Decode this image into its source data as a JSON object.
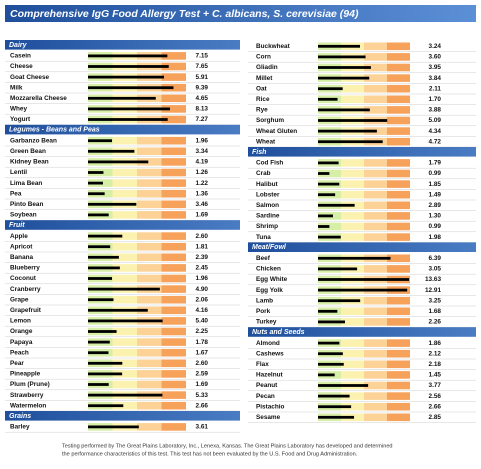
{
  "title": "Comprehensive IgG Food Allergy Test + C. albicans, S. cerevisiae (94)",
  "scale": {
    "breaks": [
      0,
      2,
      3.5,
      5,
      14
    ],
    "colors": [
      "#d6eea6",
      "#fbf2b0",
      "#fcd296",
      "#f7a25b"
    ],
    "bar_color": "#000000"
  },
  "columns": [
    [
      {
        "header": "Dairy",
        "items": [
          {
            "name": "Casein",
            "value": 7.15
          },
          {
            "name": "Cheese",
            "value": 7.65
          },
          {
            "name": "Goat Cheese",
            "value": 5.91
          },
          {
            "name": "Milk",
            "value": 9.39
          },
          {
            "name": "Mozzarella Cheese",
            "value": 4.65
          },
          {
            "name": "Whey",
            "value": 8.13
          },
          {
            "name": "Yogurt",
            "value": 7.27
          }
        ]
      },
      {
        "header": "Legumes - Beans and Peas",
        "items": [
          {
            "name": "Garbanzo Bean",
            "value": 1.96
          },
          {
            "name": "Green Bean",
            "value": 3.34
          },
          {
            "name": "Kidney Bean",
            "value": 4.19
          },
          {
            "name": "Lentil",
            "value": 1.26
          },
          {
            "name": "Lima Bean",
            "value": 1.22
          },
          {
            "name": "Pea",
            "value": 1.36
          },
          {
            "name": "Pinto Bean",
            "value": 3.46
          },
          {
            "name": "Soybean",
            "value": 1.69
          }
        ]
      },
      {
        "header": "Fruit",
        "items": [
          {
            "name": "Apple",
            "value": 2.6,
            "value_label": "2.60"
          },
          {
            "name": "Apricot",
            "value": 1.81
          },
          {
            "name": "Banana",
            "value": 2.39
          },
          {
            "name": "Blueberry",
            "value": 2.45
          },
          {
            "name": "Coconut",
            "value": 1.96
          },
          {
            "name": "Cranberry",
            "value": 4.9,
            "value_label": "4.90"
          },
          {
            "name": "Grape",
            "value": 2.06
          },
          {
            "name": "Grapefruit",
            "value": 4.16
          },
          {
            "name": "Lemon",
            "value": 5.4,
            "value_label": "5.40"
          },
          {
            "name": "Orange",
            "value": 2.25
          },
          {
            "name": "Papaya",
            "value": 1.78
          },
          {
            "name": "Peach",
            "value": 1.67
          },
          {
            "name": "Pear",
            "value": 2.6,
            "value_label": "2.60"
          },
          {
            "name": "Pineapple",
            "value": 2.59
          },
          {
            "name": "Plum (Prune)",
            "value": 1.69
          },
          {
            "name": "Strawberry",
            "value": 5.33
          },
          {
            "name": "Watermelon",
            "value": 2.66
          }
        ]
      },
      {
        "header": "Grains",
        "items": [
          {
            "name": "Barley",
            "value": 3.61
          }
        ]
      }
    ],
    [
      {
        "items": [
          {
            "name": "Buckwheat",
            "value": 3.24
          },
          {
            "name": "Corn",
            "value": 3.6,
            "value_label": "3.60"
          },
          {
            "name": "Gliadin",
            "value": 3.95
          },
          {
            "name": "Millet",
            "value": 3.84
          },
          {
            "name": "Oat",
            "value": 2.11
          },
          {
            "name": "Rice",
            "value": 1.7,
            "value_label": "1.70"
          },
          {
            "name": "Rye",
            "value": 3.88
          },
          {
            "name": "Sorghum",
            "value": 5.09
          },
          {
            "name": "Wheat Gluten",
            "value": 4.34
          },
          {
            "name": "Wheat",
            "value": 4.72
          }
        ]
      },
      {
        "header": "Fish",
        "items": [
          {
            "name": "Cod Fish",
            "value": 1.79
          },
          {
            "name": "Crab",
            "value": 0.99
          },
          {
            "name": "Halibut",
            "value": 1.85
          },
          {
            "name": "Lobster",
            "value": 1.49
          },
          {
            "name": "Salmon",
            "value": 2.89
          },
          {
            "name": "Sardine",
            "value": 1.3,
            "value_label": "1.30"
          },
          {
            "name": "Shrimp",
            "value": 0.99
          },
          {
            "name": "Tuna",
            "value": 1.98
          }
        ]
      },
      {
        "header": "Meat/Fowl",
        "items": [
          {
            "name": "Beef",
            "value": 6.39
          },
          {
            "name": "Chicken",
            "value": 3.05
          },
          {
            "name": "Egg White",
            "value": 13.63
          },
          {
            "name": "Egg Yolk",
            "value": 12.91
          },
          {
            "name": "Lamb",
            "value": 3.25
          },
          {
            "name": "Pork",
            "value": 1.68
          },
          {
            "name": "Turkey",
            "value": 2.26
          }
        ]
      },
      {
        "header": "Nuts and Seeds",
        "items": [
          {
            "name": "Almond",
            "value": 1.86
          },
          {
            "name": "Cashews",
            "value": 2.12
          },
          {
            "name": "Flax",
            "value": 2.18
          },
          {
            "name": "Hazelnut",
            "value": 1.45
          },
          {
            "name": "Peanut",
            "value": 3.77
          },
          {
            "name": "Pecan",
            "value": 2.56
          },
          {
            "name": "Pistachio",
            "value": 2.66
          },
          {
            "name": "Sesame",
            "value": 2.85
          }
        ]
      }
    ]
  ],
  "footer": [
    "Testing performed by The Great Plains Laboratory, Inc., Lenexa, Kansas.  The Great Plains Laboratory has developed and determined",
    "the performance characteristics of this test.  This test has not been evaluated by the U.S. Food and Drug Administration."
  ]
}
